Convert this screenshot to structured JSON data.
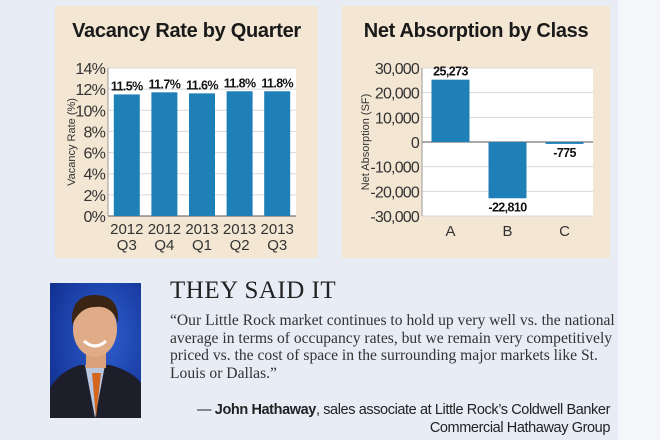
{
  "chart_data": [
    {
      "type": "bar",
      "title": "Vacancy Rate by Quarter",
      "ylabel": "Vacancy Rate (%)",
      "xlabel": "",
      "categories": [
        [
          "2012",
          "Q3"
        ],
        [
          "2012",
          "Q4"
        ],
        [
          "2013",
          "Q1"
        ],
        [
          "2013",
          "Q2"
        ],
        [
          "2013",
          "Q3"
        ]
      ],
      "values": [
        11.5,
        11.7,
        11.6,
        11.8,
        11.8
      ],
      "data_labels": [
        "11.5%",
        "11.7%",
        "11.6%",
        "11.8%",
        "11.8%"
      ],
      "ylim": [
        0,
        14
      ],
      "yticks": [
        "0%",
        "2%",
        "4%",
        "6%",
        "8%",
        "10%",
        "12%",
        "14%"
      ],
      "ytick_values": [
        0,
        2,
        4,
        6,
        8,
        10,
        12,
        14
      ],
      "grid": true,
      "bar_color": "#1f7fb7"
    },
    {
      "type": "bar",
      "title": "Net Absorption by Class",
      "ylabel": "Net Absorption (SF)",
      "xlabel": "",
      "categories": [
        "A",
        "B",
        "C"
      ],
      "values": [
        25273,
        -22810,
        -775
      ],
      "data_labels": [
        "25,273",
        "-22,810",
        "-775"
      ],
      "ylim": [
        -30000,
        30000
      ],
      "yticks": [
        "-30,000",
        "-20,000",
        "-10,000",
        "0",
        "10,000",
        "20,000",
        "30,000"
      ],
      "ytick_values": [
        -30000,
        -20000,
        -10000,
        0,
        10000,
        20000,
        30000
      ],
      "grid": true,
      "bar_color": "#1f7fb7"
    }
  ],
  "quote": {
    "heading": "THEY SAID IT",
    "text": "“Our Little Rock market continues to hold up very well vs. the national average in terms of occupancy rates, but we remain very competitively priced vs. the cost of space in the surrounding major markets like St. Louis or Dallas.”",
    "dash": "— ",
    "name": "John Hathaway",
    "role_line1": ", sales associate at Little Rock’s Coldwell Banker",
    "role_line2": "Commercial Hathaway Group"
  },
  "photo": {
    "icon": "portrait-photo"
  }
}
